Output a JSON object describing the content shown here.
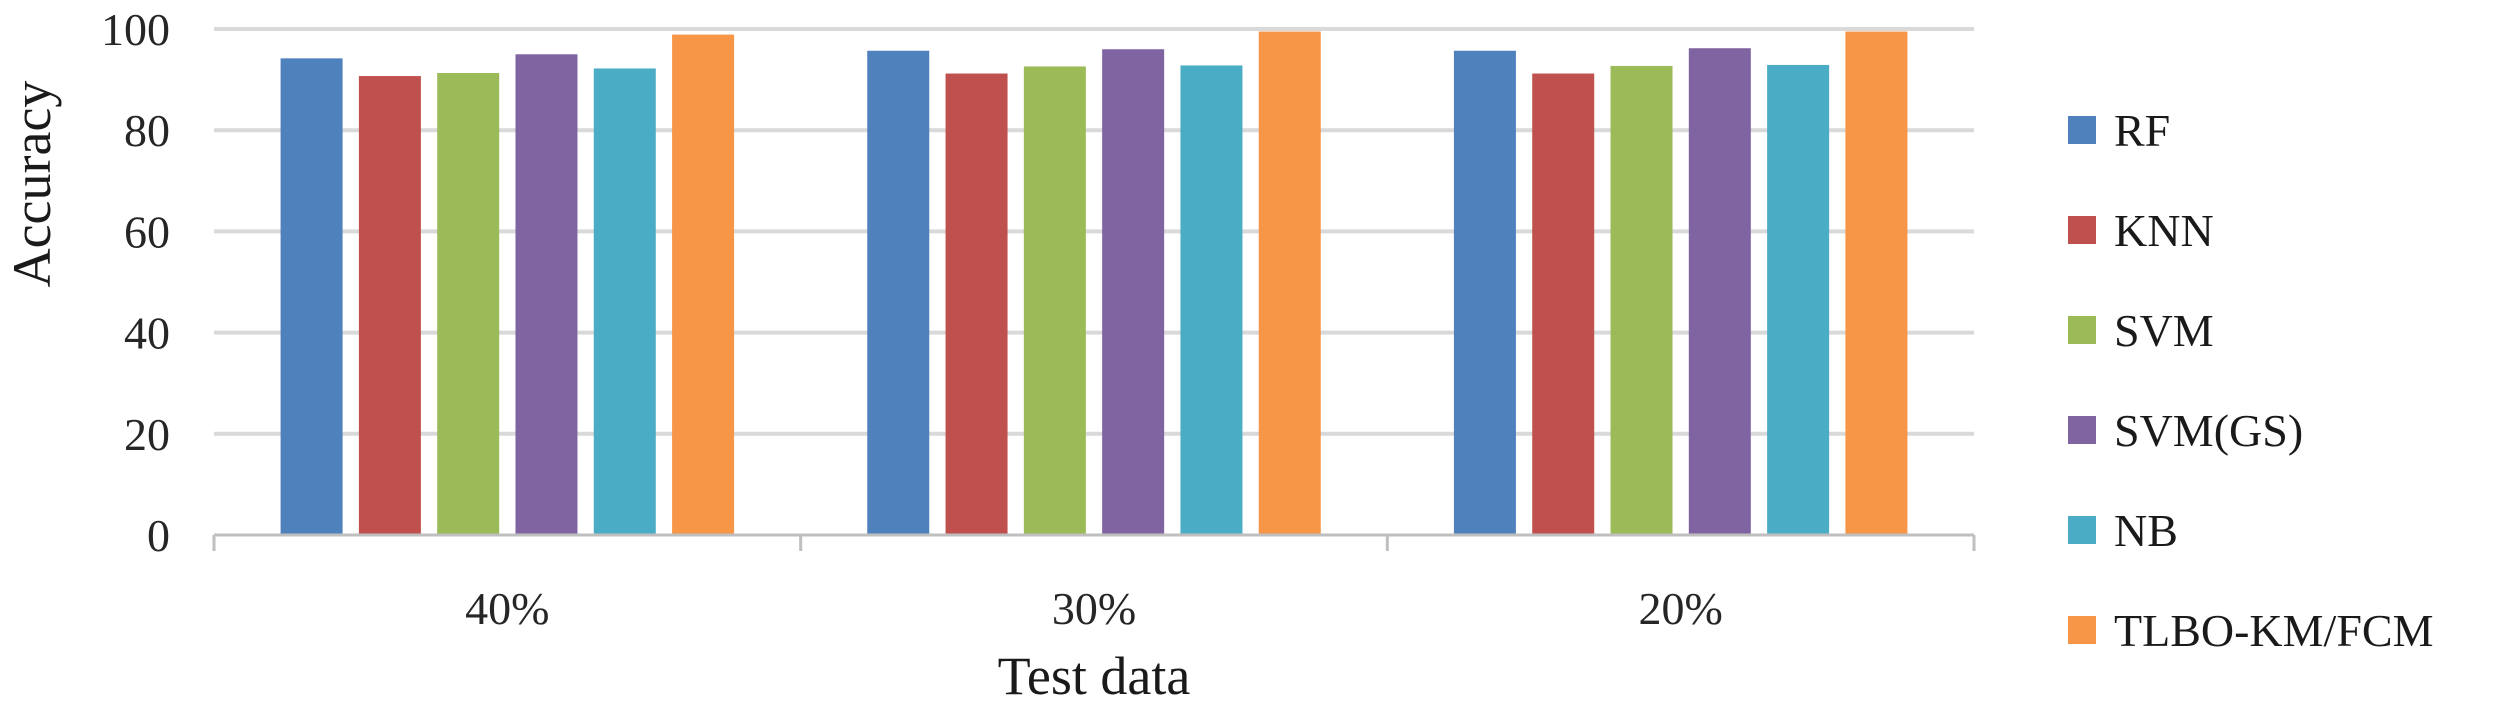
{
  "chart_data": {
    "type": "bar",
    "title": "",
    "xlabel": "Test data",
    "ylabel": "Accuracy",
    "categories": [
      "40%",
      "30%",
      "20%"
    ],
    "ylim": [
      0,
      100
    ],
    "yticks": [
      0,
      20,
      40,
      60,
      80,
      100
    ],
    "grid": true,
    "legend_position": "right",
    "series": [
      {
        "name": "RF",
        "color": "#4F81BD",
        "values": [
          94.2,
          95.7,
          95.7
        ]
      },
      {
        "name": "KNN",
        "color": "#C0504D",
        "values": [
          90.7,
          91.2,
          91.2
        ]
      },
      {
        "name": "SVM",
        "color": "#9BBB59",
        "values": [
          91.3,
          92.6,
          92.7
        ]
      },
      {
        "name": "SVM(GS)",
        "color": "#8064A2",
        "values": [
          95.0,
          96.0,
          96.2
        ]
      },
      {
        "name": "NB",
        "color": "#4BACC6",
        "values": [
          92.2,
          92.8,
          92.9
        ]
      },
      {
        "name": "TLBO-KM/FCM",
        "color": "#F79646",
        "values": [
          98.9,
          99.5,
          99.5
        ]
      }
    ]
  }
}
